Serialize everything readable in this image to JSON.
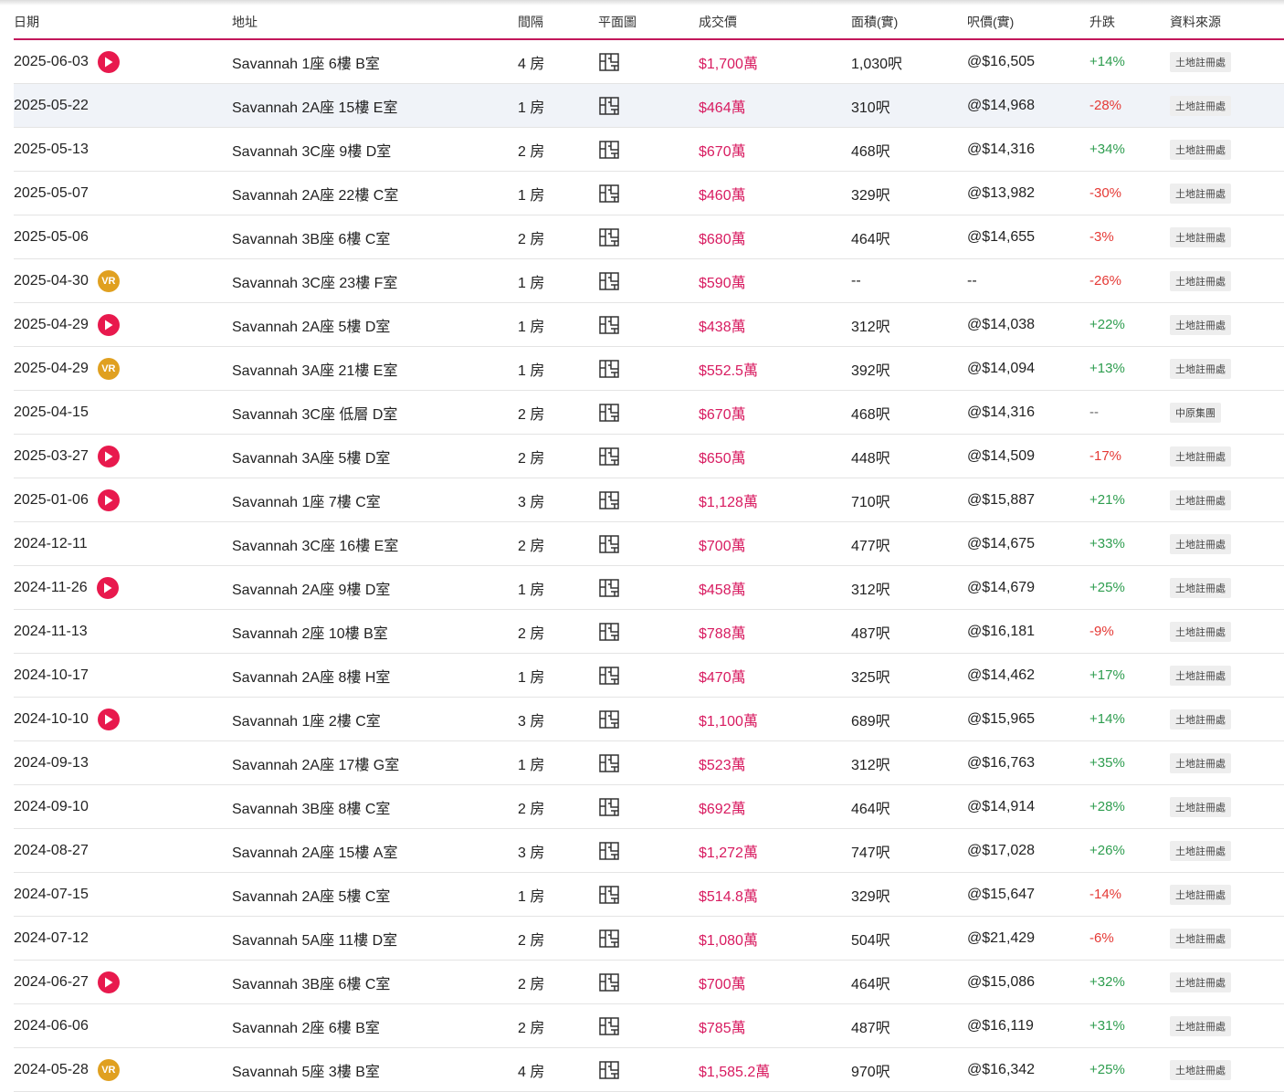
{
  "header": {
    "date": "日期",
    "address": "地址",
    "rooms": "間隔",
    "floorplan": "平面圖",
    "price": "成交價",
    "area": "面積(實)",
    "psf": "呎價(實)",
    "change": "升跌",
    "source": "資料來源"
  },
  "colors": {
    "accent": "#c2185b",
    "price": "#d81b60",
    "up": "#2e9d4f",
    "down": "#e53935",
    "play": "#e8194d",
    "vr": "#e0a020"
  },
  "icons": {
    "play": "play-icon",
    "vr": "vr-icon",
    "floorplan": "floorplan-icon"
  },
  "vr_label": "VR",
  "rows": [
    {
      "date": "2025-06-03",
      "badge": "play",
      "address": "Savannah 1座 6樓 B室",
      "rooms": "4 房",
      "price": "$1,700萬",
      "area": "1,030呎",
      "psf": "@$16,505",
      "change": "+14%",
      "source": "土地註冊處"
    },
    {
      "date": "2025-05-22",
      "badge": "",
      "address": "Savannah 2A座 15樓 E室",
      "rooms": "1 房",
      "price": "$464萬",
      "area": "310呎",
      "psf": "@$14,968",
      "change": "-28%",
      "source": "土地註冊處"
    },
    {
      "date": "2025-05-13",
      "badge": "",
      "address": "Savannah 3C座 9樓 D室",
      "rooms": "2 房",
      "price": "$670萬",
      "area": "468呎",
      "psf": "@$14,316",
      "change": "+34%",
      "source": "土地註冊處"
    },
    {
      "date": "2025-05-07",
      "badge": "",
      "address": "Savannah 2A座 22樓 C室",
      "rooms": "1 房",
      "price": "$460萬",
      "area": "329呎",
      "psf": "@$13,982",
      "change": "-30%",
      "source": "土地註冊處"
    },
    {
      "date": "2025-05-06",
      "badge": "",
      "address": "Savannah 3B座 6樓 C室",
      "rooms": "2 房",
      "price": "$680萬",
      "area": "464呎",
      "psf": "@$14,655",
      "change": "-3%",
      "source": "土地註冊處"
    },
    {
      "date": "2025-04-30",
      "badge": "vr",
      "address": "Savannah 3C座 23樓 F室",
      "rooms": "1 房",
      "price": "$590萬",
      "area": "--",
      "psf": "--",
      "change": "-26%",
      "source": "土地註冊處"
    },
    {
      "date": "2025-04-29",
      "badge": "play",
      "address": "Savannah 2A座 5樓 D室",
      "rooms": "1 房",
      "price": "$438萬",
      "area": "312呎",
      "psf": "@$14,038",
      "change": "+22%",
      "source": "土地註冊處"
    },
    {
      "date": "2025-04-29",
      "badge": "vr",
      "address": "Savannah 3A座 21樓 E室",
      "rooms": "1 房",
      "price": "$552.5萬",
      "area": "392呎",
      "psf": "@$14,094",
      "change": "+13%",
      "source": "土地註冊處"
    },
    {
      "date": "2025-04-15",
      "badge": "",
      "address": "Savannah 3C座 低層 D室",
      "rooms": "2 房",
      "price": "$670萬",
      "area": "468呎",
      "psf": "@$14,316",
      "change": "--",
      "source": "中原集團"
    },
    {
      "date": "2025-03-27",
      "badge": "play",
      "address": "Savannah 3A座 5樓 D室",
      "rooms": "2 房",
      "price": "$650萬",
      "area": "448呎",
      "psf": "@$14,509",
      "change": "-17%",
      "source": "土地註冊處"
    },
    {
      "date": "2025-01-06",
      "badge": "play",
      "address": "Savannah 1座 7樓 C室",
      "rooms": "3 房",
      "price": "$1,128萬",
      "area": "710呎",
      "psf": "@$15,887",
      "change": "+21%",
      "source": "土地註冊處"
    },
    {
      "date": "2024-12-11",
      "badge": "",
      "address": "Savannah 3C座 16樓 E室",
      "rooms": "2 房",
      "price": "$700萬",
      "area": "477呎",
      "psf": "@$14,675",
      "change": "+33%",
      "source": "土地註冊處"
    },
    {
      "date": "2024-11-26",
      "badge": "play",
      "address": "Savannah 2A座 9樓 D室",
      "rooms": "1 房",
      "price": "$458萬",
      "area": "312呎",
      "psf": "@$14,679",
      "change": "+25%",
      "source": "土地註冊處"
    },
    {
      "date": "2024-11-13",
      "badge": "",
      "address": "Savannah 2座 10樓 B室",
      "rooms": "2 房",
      "price": "$788萬",
      "area": "487呎",
      "psf": "@$16,181",
      "change": "-9%",
      "source": "土地註冊處"
    },
    {
      "date": "2024-10-17",
      "badge": "",
      "address": "Savannah 2A座 8樓 H室",
      "rooms": "1 房",
      "price": "$470萬",
      "area": "325呎",
      "psf": "@$14,462",
      "change": "+17%",
      "source": "土地註冊處"
    },
    {
      "date": "2024-10-10",
      "badge": "play",
      "address": "Savannah 1座 2樓 C室",
      "rooms": "3 房",
      "price": "$1,100萬",
      "area": "689呎",
      "psf": "@$15,965",
      "change": "+14%",
      "source": "土地註冊處"
    },
    {
      "date": "2024-09-13",
      "badge": "",
      "address": "Savannah 2A座 17樓 G室",
      "rooms": "1 房",
      "price": "$523萬",
      "area": "312呎",
      "psf": "@$16,763",
      "change": "+35%",
      "source": "土地註冊處"
    },
    {
      "date": "2024-09-10",
      "badge": "",
      "address": "Savannah 3B座 8樓 C室",
      "rooms": "2 房",
      "price": "$692萬",
      "area": "464呎",
      "psf": "@$14,914",
      "change": "+28%",
      "source": "土地註冊處"
    },
    {
      "date": "2024-08-27",
      "badge": "",
      "address": "Savannah 2A座 15樓 A室",
      "rooms": "3 房",
      "price": "$1,272萬",
      "area": "747呎",
      "psf": "@$17,028",
      "change": "+26%",
      "source": "土地註冊處"
    },
    {
      "date": "2024-07-15",
      "badge": "",
      "address": "Savannah 2A座 5樓 C室",
      "rooms": "1 房",
      "price": "$514.8萬",
      "area": "329呎",
      "psf": "@$15,647",
      "change": "-14%",
      "source": "土地註冊處"
    },
    {
      "date": "2024-07-12",
      "badge": "",
      "address": "Savannah 5A座 11樓 D室",
      "rooms": "2 房",
      "price": "$1,080萬",
      "area": "504呎",
      "psf": "@$21,429",
      "change": "-6%",
      "source": "土地註冊處"
    },
    {
      "date": "2024-06-27",
      "badge": "play",
      "address": "Savannah 3B座 6樓 C室",
      "rooms": "2 房",
      "price": "$700萬",
      "area": "464呎",
      "psf": "@$15,086",
      "change": "+32%",
      "source": "土地註冊處"
    },
    {
      "date": "2024-06-06",
      "badge": "",
      "address": "Savannah 2座 6樓 B室",
      "rooms": "2 房",
      "price": "$785萬",
      "area": "487呎",
      "psf": "@$16,119",
      "change": "+31%",
      "source": "土地註冊處"
    },
    {
      "date": "2024-05-28",
      "badge": "vr",
      "address": "Savannah 5座 3樓 B室",
      "rooms": "4 房",
      "price": "$1,585.2萬",
      "area": "970呎",
      "psf": "@$16,342",
      "change": "+25%",
      "source": "土地註冊處"
    }
  ]
}
